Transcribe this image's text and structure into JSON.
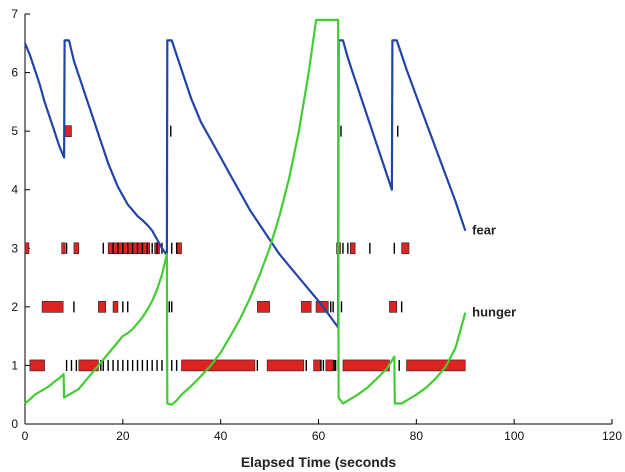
{
  "chart_data": {
    "type": "line",
    "title": "",
    "xlabel": "Elapsed Time (seconds",
    "ylabel": "",
    "xlim": [
      0,
      120
    ],
    "ylim": [
      0,
      7
    ],
    "xticks": [
      0,
      20,
      40,
      60,
      80,
      100,
      120
    ],
    "yticks": [
      0,
      1,
      2,
      3,
      4,
      5,
      6,
      7
    ],
    "grid": false,
    "series": [
      {
        "name": "fear",
        "color": "#2244aa",
        "points": [
          [
            0,
            6.5
          ],
          [
            1,
            6.3
          ],
          [
            2,
            6.05
          ],
          [
            3,
            5.8
          ],
          [
            4,
            5.5
          ],
          [
            5,
            5.25
          ],
          [
            6,
            5.0
          ],
          [
            7,
            4.75
          ],
          [
            8,
            4.55
          ],
          [
            8.1,
            6.55
          ],
          [
            9,
            6.55
          ],
          [
            10,
            6.2
          ],
          [
            11,
            5.95
          ],
          [
            12,
            5.7
          ],
          [
            13,
            5.45
          ],
          [
            14,
            5.2
          ],
          [
            15,
            4.95
          ],
          [
            16,
            4.7
          ],
          [
            17,
            4.45
          ],
          [
            18,
            4.25
          ],
          [
            19,
            4.05
          ],
          [
            20,
            3.9
          ],
          [
            21,
            3.75
          ],
          [
            22,
            3.65
          ],
          [
            23,
            3.55
          ],
          [
            24,
            3.48
          ],
          [
            25,
            3.4
          ],
          [
            26,
            3.3
          ],
          [
            27,
            3.15
          ],
          [
            28,
            3.0
          ],
          [
            29,
            2.88
          ],
          [
            29.1,
            6.55
          ],
          [
            30,
            6.55
          ],
          [
            31,
            6.3
          ],
          [
            32,
            6.05
          ],
          [
            33,
            5.8
          ],
          [
            34,
            5.55
          ],
          [
            35,
            5.35
          ],
          [
            36,
            5.15
          ],
          [
            38,
            4.85
          ],
          [
            40,
            4.55
          ],
          [
            42,
            4.25
          ],
          [
            44,
            3.95
          ],
          [
            46,
            3.65
          ],
          [
            48,
            3.4
          ],
          [
            50,
            3.15
          ],
          [
            52,
            2.9
          ],
          [
            54,
            2.7
          ],
          [
            56,
            2.5
          ],
          [
            58,
            2.3
          ],
          [
            60,
            2.1
          ],
          [
            62,
            1.88
          ],
          [
            64,
            1.65
          ],
          [
            64.1,
            6.55
          ],
          [
            65,
            6.55
          ],
          [
            66,
            6.25
          ],
          [
            67,
            6.0
          ],
          [
            68,
            5.75
          ],
          [
            69,
            5.5
          ],
          [
            70,
            5.25
          ],
          [
            71,
            5.0
          ],
          [
            72,
            4.75
          ],
          [
            73,
            4.5
          ],
          [
            74,
            4.25
          ],
          [
            75,
            4.0
          ],
          [
            75.1,
            6.55
          ],
          [
            76,
            6.55
          ],
          [
            77,
            6.3
          ],
          [
            78,
            6.05
          ],
          [
            80,
            5.6
          ],
          [
            82,
            5.15
          ],
          [
            84,
            4.7
          ],
          [
            86,
            4.25
          ],
          [
            88,
            3.8
          ],
          [
            90,
            3.3
          ]
        ]
      },
      {
        "name": "hunger",
        "color": "#44cc33",
        "points": [
          [
            0,
            0.35
          ],
          [
            1,
            0.42
          ],
          [
            2,
            0.5
          ],
          [
            3,
            0.55
          ],
          [
            4,
            0.6
          ],
          [
            5,
            0.65
          ],
          [
            6,
            0.72
          ],
          [
            7,
            0.78
          ],
          [
            7.9,
            0.85
          ],
          [
            8,
            0.45
          ],
          [
            9,
            0.5
          ],
          [
            10,
            0.55
          ],
          [
            11,
            0.6
          ],
          [
            12,
            0.7
          ],
          [
            13,
            0.8
          ],
          [
            14,
            0.9
          ],
          [
            15,
            1.0
          ],
          [
            16,
            1.1
          ],
          [
            17,
            1.2
          ],
          [
            18,
            1.3
          ],
          [
            19,
            1.4
          ],
          [
            20,
            1.5
          ],
          [
            21,
            1.55
          ],
          [
            22,
            1.62
          ],
          [
            23,
            1.72
          ],
          [
            24,
            1.82
          ],
          [
            25,
            1.95
          ],
          [
            26,
            2.1
          ],
          [
            27,
            2.3
          ],
          [
            28,
            2.55
          ],
          [
            29,
            2.9
          ],
          [
            29.1,
            0.35
          ],
          [
            30,
            0.33
          ],
          [
            31,
            0.4
          ],
          [
            32,
            0.5
          ],
          [
            34,
            0.65
          ],
          [
            36,
            0.82
          ],
          [
            38,
            1.0
          ],
          [
            40,
            1.22
          ],
          [
            42,
            1.5
          ],
          [
            44,
            1.8
          ],
          [
            46,
            2.15
          ],
          [
            48,
            2.55
          ],
          [
            50,
            3.0
          ],
          [
            52,
            3.55
          ],
          [
            54,
            4.2
          ],
          [
            56,
            5.0
          ],
          [
            58,
            6.0
          ],
          [
            59.5,
            6.9
          ],
          [
            60,
            6.9
          ],
          [
            64,
            6.9
          ],
          [
            64.1,
            0.45
          ],
          [
            65,
            0.35
          ],
          [
            66,
            0.4
          ],
          [
            68,
            0.5
          ],
          [
            70,
            0.62
          ],
          [
            72,
            0.78
          ],
          [
            74,
            0.95
          ],
          [
            75.5,
            1.15
          ],
          [
            75.6,
            0.35
          ],
          [
            77,
            0.35
          ],
          [
            78,
            0.4
          ],
          [
            80,
            0.5
          ],
          [
            82,
            0.62
          ],
          [
            84,
            0.78
          ],
          [
            86,
            0.98
          ],
          [
            88,
            1.3
          ],
          [
            90,
            1.9
          ]
        ]
      }
    ],
    "series_labels": [
      {
        "name": "fear",
        "x": 91,
        "y": 3.3,
        "text": "fear"
      },
      {
        "name": "hunger",
        "x": 91,
        "y": 1.9,
        "text": "hunger"
      }
    ],
    "event_rows": [
      {
        "y": 5,
        "color": "#dd2222",
        "events": [
          [
            8.2,
            9.5
          ]
        ],
        "ticks": [
          29.8,
          64.6,
          76.2
        ]
      },
      {
        "y": 3,
        "color": "#dd2222",
        "events": [
          [
            0,
            0.8
          ],
          [
            7.5,
            8.2
          ],
          [
            10,
            11
          ],
          [
            17,
            25.5
          ],
          [
            26.5,
            27.5
          ],
          [
            31,
            32
          ],
          [
            63.7,
            64.5
          ],
          [
            66.5,
            67.5
          ],
          [
            77,
            78.5
          ]
        ],
        "ticks": [
          8.5,
          16,
          18,
          19,
          20,
          21,
          22,
          23,
          24,
          25,
          26,
          27,
          28,
          29,
          30,
          31,
          64,
          65,
          66,
          70.5,
          75.5
        ]
      },
      {
        "y": 2,
        "color": "#dd2222",
        "events": [
          [
            3.5,
            7.8
          ],
          [
            15,
            16.5
          ],
          [
            18,
            19
          ],
          [
            47.5,
            50
          ],
          [
            56.5,
            58.5
          ],
          [
            59.5,
            62
          ],
          [
            74.5,
            76
          ]
        ],
        "ticks": [
          10,
          20,
          21,
          29.5,
          30,
          62.5,
          63,
          64,
          64.7,
          77
        ]
      },
      {
        "y": 1,
        "color": "#dd2222",
        "events": [
          [
            1,
            4
          ],
          [
            11,
            15
          ],
          [
            32,
            47
          ],
          [
            49.5,
            57
          ],
          [
            59,
            60.5
          ],
          [
            61.5,
            63
          ],
          [
            65,
            74.5
          ],
          [
            78,
            90
          ]
        ],
        "ticks": [
          8.5,
          9.5,
          10.5,
          15.5,
          16,
          17,
          18,
          19,
          20,
          21,
          22,
          23,
          24,
          25,
          26,
          27,
          28,
          29,
          30,
          31,
          47.5,
          57.5,
          60.5,
          61,
          63.2,
          63.5,
          64,
          76.5
        ]
      }
    ]
  }
}
